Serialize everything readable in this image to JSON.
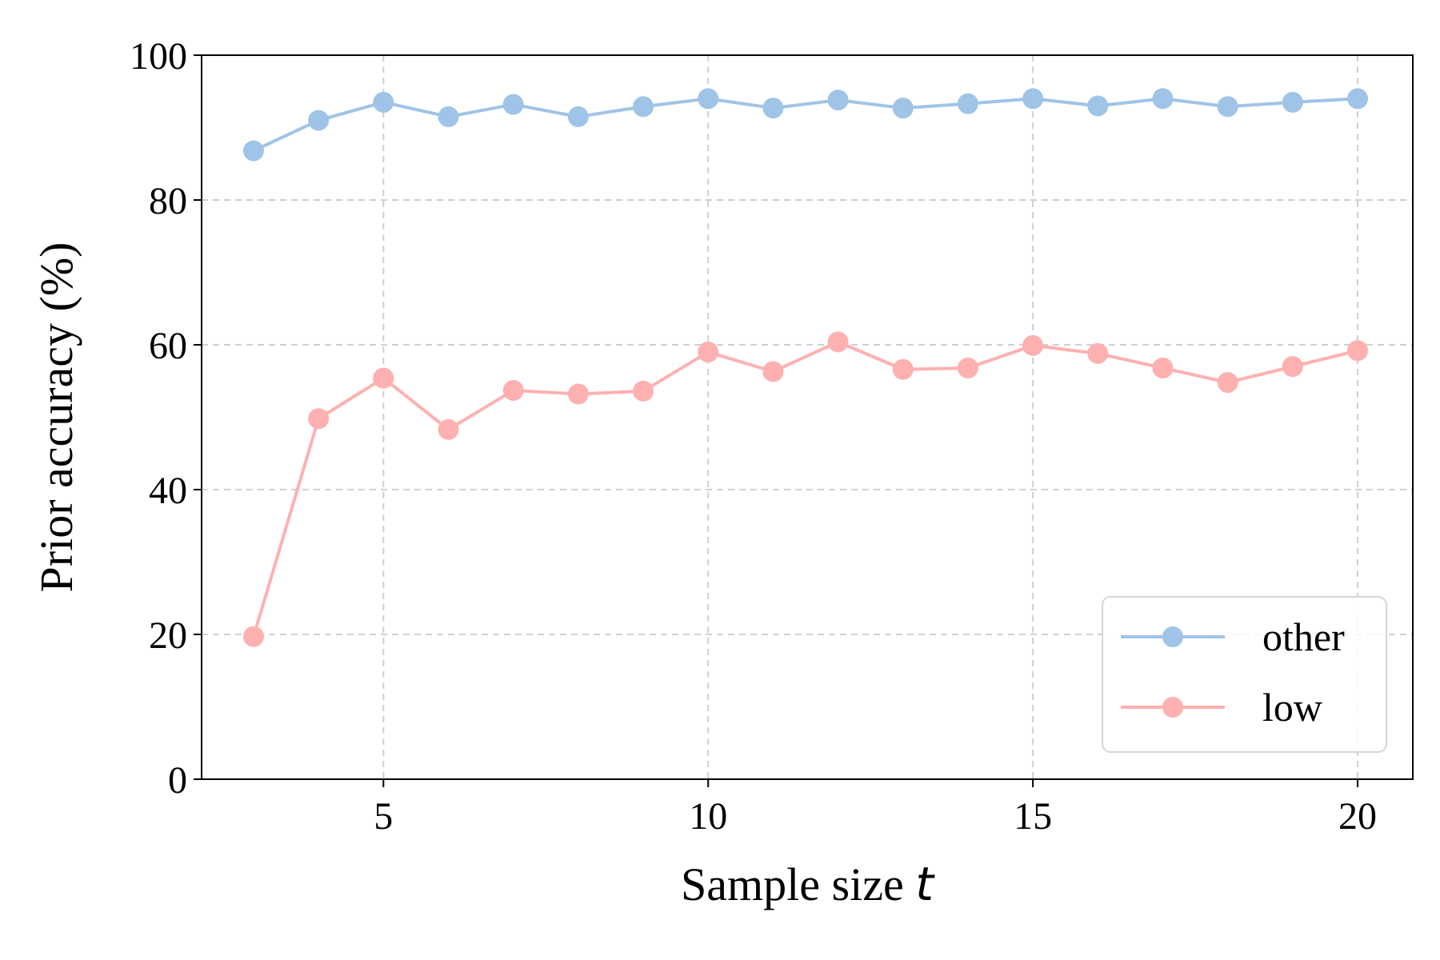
{
  "chart_data": {
    "type": "line",
    "title": "",
    "xlabel": "Sample size ",
    "xlabel_var": "t",
    "ylabel": "Prior accuracy (%)",
    "xlim": [
      2.2,
      20.85
    ],
    "ylim": [
      0,
      100
    ],
    "xticks": [
      5,
      10,
      15,
      20
    ],
    "yticks": [
      0,
      20,
      40,
      60,
      80,
      100
    ],
    "x": [
      3,
      4,
      5,
      6,
      7,
      8,
      9,
      10,
      11,
      12,
      13,
      14,
      15,
      16,
      17,
      18,
      19,
      20
    ],
    "series": [
      {
        "name": "other",
        "color": "#9fc4e7",
        "values": [
          86.8,
          91.0,
          93.5,
          91.5,
          93.2,
          91.5,
          92.9,
          94.0,
          92.7,
          93.8,
          92.7,
          93.3,
          94.0,
          93.0,
          94.0,
          92.9,
          93.5,
          94.0
        ]
      },
      {
        "name": "low",
        "color": "#ffb0b0",
        "values": [
          19.7,
          49.8,
          55.4,
          48.3,
          53.7,
          53.2,
          53.6,
          59.0,
          56.3,
          60.4,
          56.6,
          56.8,
          59.9,
          58.8,
          56.8,
          54.8,
          57.0,
          59.2
        ]
      }
    ],
    "grid": true,
    "legend_position": "lower-right"
  }
}
